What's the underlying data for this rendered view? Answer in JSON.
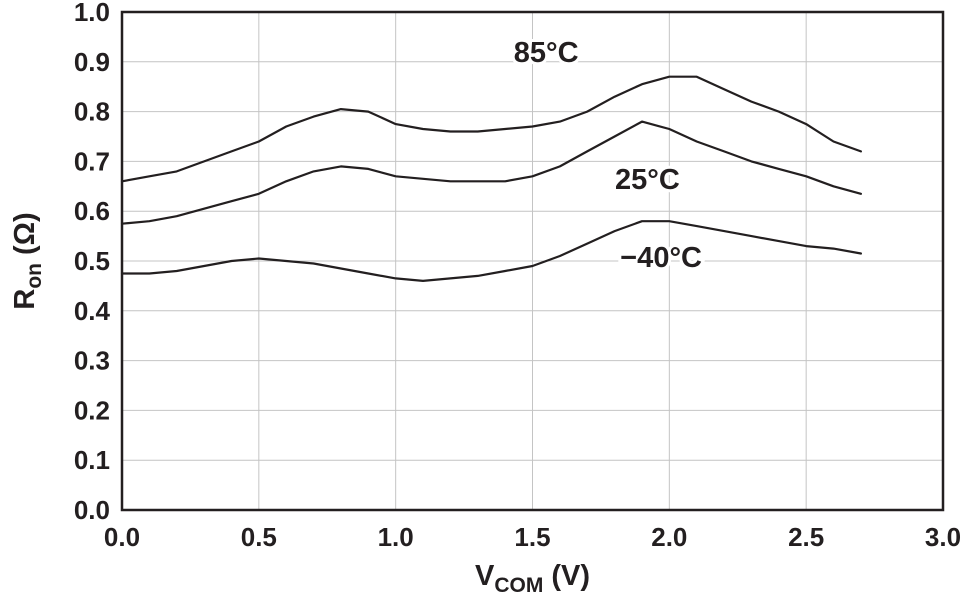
{
  "chart_data": {
    "type": "line",
    "title": "",
    "xlabel": {
      "main": "V",
      "sub": "COM",
      "unit": " (V)"
    },
    "ylabel": {
      "main": "R",
      "sub": "on",
      "unit": " (Ω)"
    },
    "xlim": [
      0.0,
      3.0
    ],
    "ylim": [
      0.0,
      1.0
    ],
    "xticks": [
      0.0,
      0.5,
      1.0,
      1.5,
      2.0,
      2.5,
      3.0
    ],
    "yticks": [
      0.0,
      0.1,
      0.2,
      0.3,
      0.4,
      0.5,
      0.6,
      0.7,
      0.8,
      0.9,
      1.0
    ],
    "grid": true,
    "grid_color": "#c4c4c4",
    "frame_color": "#231f20",
    "line_color": "#231f20",
    "x": [
      0.0,
      0.1,
      0.2,
      0.3,
      0.4,
      0.5,
      0.6,
      0.7,
      0.8,
      0.9,
      1.0,
      1.1,
      1.2,
      1.3,
      1.4,
      1.5,
      1.6,
      1.7,
      1.8,
      1.9,
      2.0,
      2.1,
      2.2,
      2.3,
      2.4,
      2.5,
      2.6,
      2.7
    ],
    "series": [
      {
        "name": "85°C",
        "values": [
          0.66,
          0.67,
          0.68,
          0.7,
          0.72,
          0.74,
          0.77,
          0.79,
          0.805,
          0.8,
          0.775,
          0.765,
          0.76,
          0.76,
          0.765,
          0.77,
          0.78,
          0.8,
          0.83,
          0.855,
          0.87,
          0.87,
          0.845,
          0.82,
          0.8,
          0.775,
          0.74,
          0.72
        ]
      },
      {
        "name": "25°C",
        "values": [
          0.575,
          0.58,
          0.59,
          0.605,
          0.62,
          0.635,
          0.66,
          0.68,
          0.69,
          0.685,
          0.67,
          0.665,
          0.66,
          0.66,
          0.66,
          0.67,
          0.69,
          0.72,
          0.75,
          0.78,
          0.765,
          0.74,
          0.72,
          0.7,
          0.685,
          0.67,
          0.65,
          0.635
        ]
      },
      {
        "name": "−40°C",
        "values": [
          0.475,
          0.475,
          0.48,
          0.49,
          0.5,
          0.505,
          0.5,
          0.495,
          0.485,
          0.475,
          0.465,
          0.46,
          0.465,
          0.47,
          0.48,
          0.49,
          0.51,
          0.535,
          0.56,
          0.58,
          0.58,
          0.57,
          0.56,
          0.55,
          0.54,
          0.53,
          0.525,
          0.515
        ]
      }
    ],
    "annotations": [
      {
        "text": "85°C",
        "x": 1.55,
        "y": 0.92
      },
      {
        "text": "25°C",
        "x": 1.92,
        "y": 0.665
      },
      {
        "text": "−40°C",
        "x": 1.97,
        "y": 0.508
      }
    ],
    "legend_position": "none"
  }
}
